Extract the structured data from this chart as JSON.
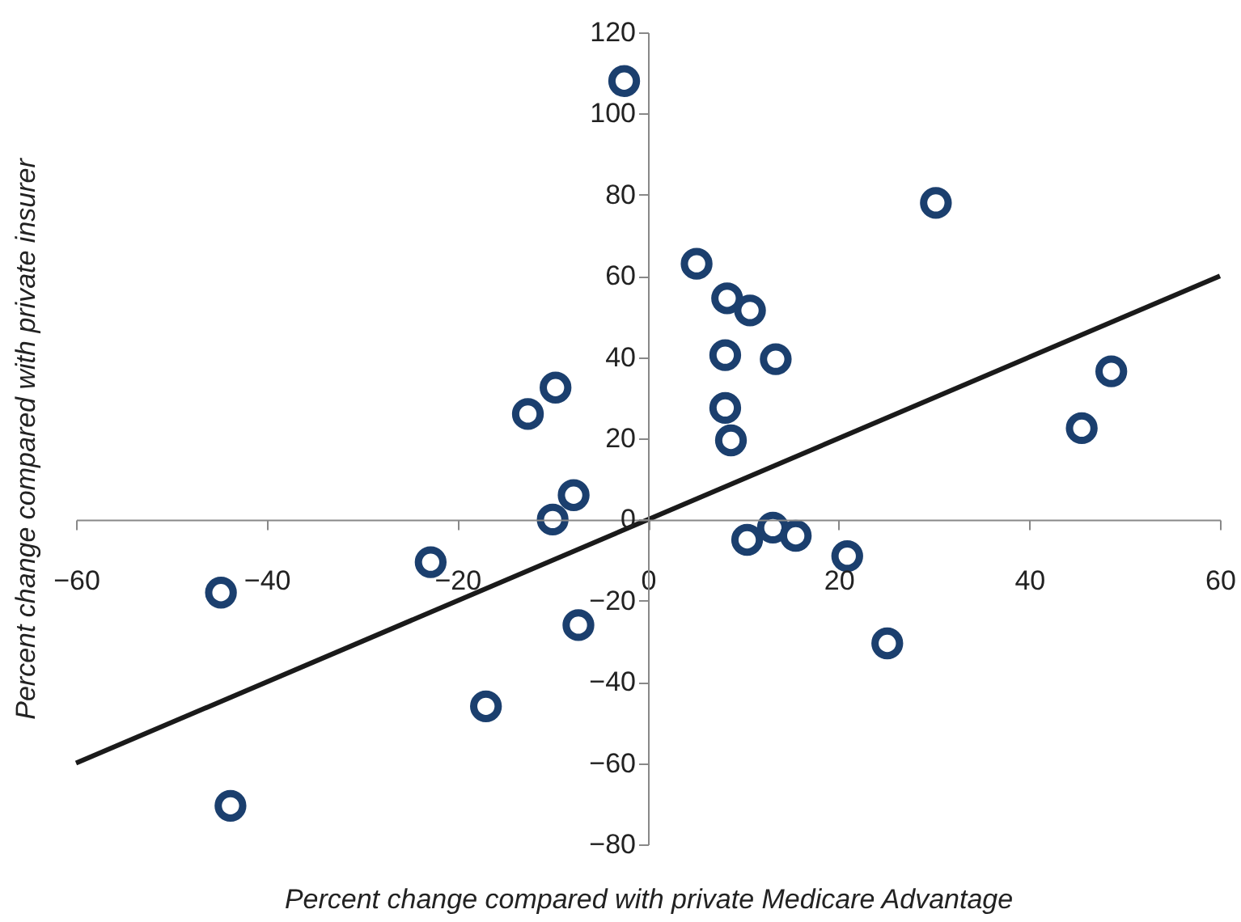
{
  "chart_data": {
    "type": "scatter",
    "xlabel": "Percent change compared with private Medicare Advantage",
    "ylabel": "Percent change compared with private insurer",
    "xlim": [
      -60,
      60
    ],
    "ylim": [
      -80,
      120
    ],
    "xticks": [
      -60,
      -40,
      -20,
      0,
      20,
      40,
      60
    ],
    "yticks": [
      -80,
      -60,
      -40,
      -20,
      0,
      20,
      40,
      60,
      80,
      100,
      120
    ],
    "grid": false,
    "series": [
      {
        "marker": "circle",
        "color": "#1b3f6e",
        "x": [
          -2.5,
          30.2,
          5.1,
          8.3,
          10.7,
          8.1,
          13.4,
          8.1,
          8.7,
          48.6,
          45.5,
          -9.7,
          -12.6,
          -7.8,
          -10,
          -22.8,
          -44.8,
          -7.3,
          -17,
          -43.8,
          10.4,
          13.1,
          15.5,
          20.9,
          25.1
        ],
        "values": [
          108,
          78,
          63,
          54.5,
          51.5,
          40.5,
          39.5,
          27.5,
          19.5,
          36.5,
          22.5,
          32.5,
          26,
          6,
          0,
          -10.5,
          -18,
          -26,
          -46,
          -70.5,
          -5,
          -2,
          -4,
          -9,
          -30.5
        ]
      },
      {
        "type": "line",
        "marker": "none",
        "color": "#1a1a1a",
        "x": [
          -60,
          60
        ],
        "values": [
          -60,
          60
        ]
      }
    ]
  }
}
